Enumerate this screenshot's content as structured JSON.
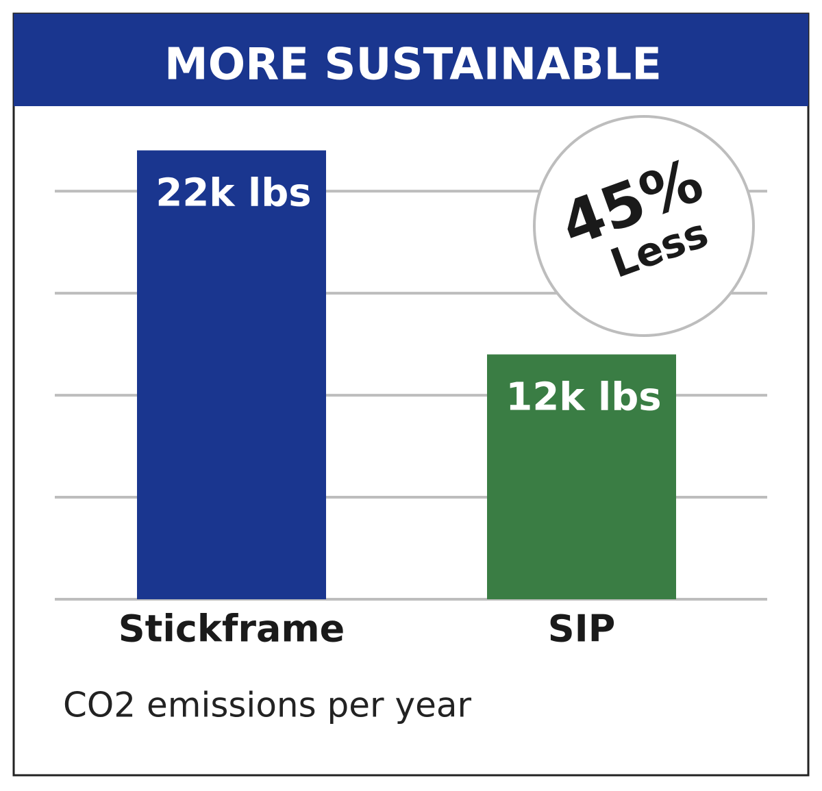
{
  "chart_data": {
    "type": "bar",
    "title": "MORE SUSTAINABLE",
    "categories": [
      "Stickframe",
      "SIP"
    ],
    "values": [
      22,
      12
    ],
    "value_labels": [
      "22k lbs",
      "12k lbs"
    ],
    "colors": [
      "#1a368f",
      "#3a7d44"
    ],
    "ylim": [
      0,
      24
    ],
    "yticks": [
      0,
      5,
      10,
      15,
      20
    ],
    "grid": true,
    "annotation": {
      "value": "45%",
      "text": "Less"
    },
    "subtitle": "CO2 emissions per year"
  }
}
